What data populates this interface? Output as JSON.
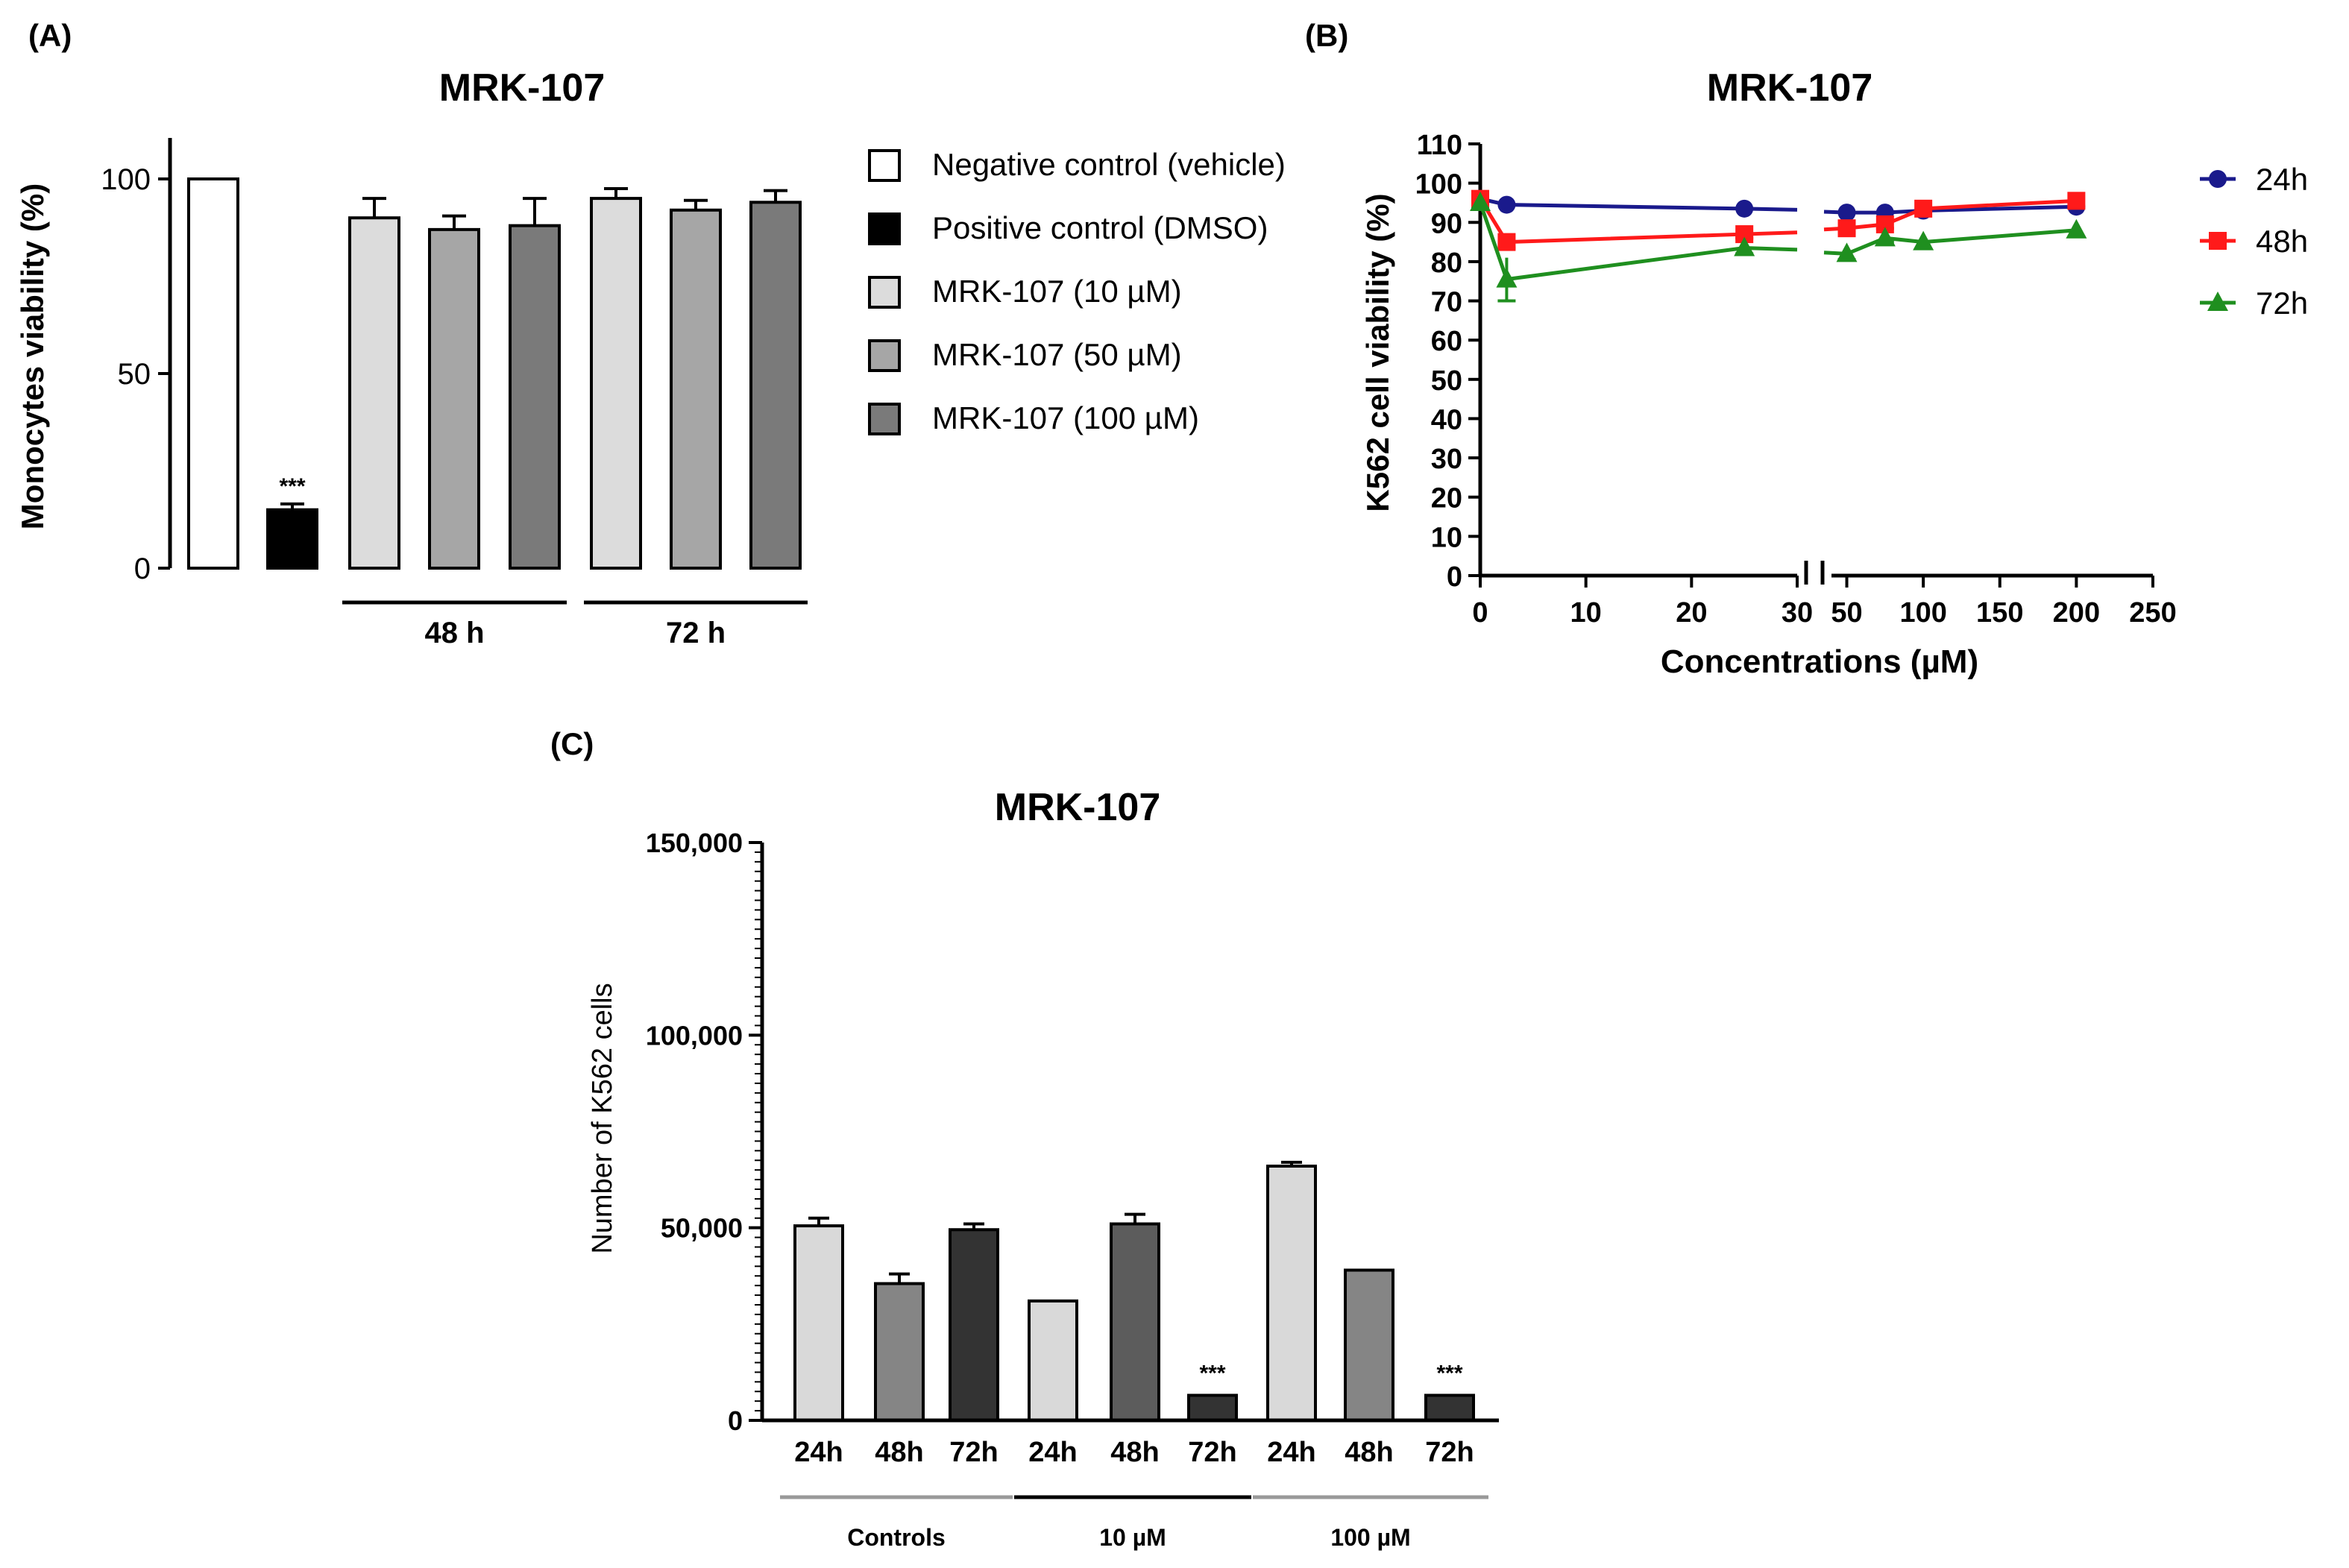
{
  "figure": {
    "panel_a_label": "(A)",
    "panel_b_label": "(B)",
    "panel_c_label": "(C)"
  },
  "chart_data": [
    {
      "id": "A",
      "type": "bar",
      "title": "MRK-107",
      "ylabel": "Monocytes viability (%)",
      "ylim": [
        0,
        110
      ],
      "yticks": [
        "0",
        "50",
        "100"
      ],
      "ytick_values": [
        0,
        50,
        100
      ],
      "categories": [
        "Negative control (vehicle)",
        "Positive control (DMSO)",
        "MRK-107 (10 µM) 48 h",
        "MRK-107 (50 µM) 48 h",
        "MRK-107 (100 µM) 48 h",
        "MRK-107 (10 µM) 72 h",
        "MRK-107 (50 µM) 72 h",
        "MRK-107 (100 µM) 72 h"
      ],
      "values": [
        100,
        15,
        90,
        87,
        88,
        95,
        92,
        94
      ],
      "errors": [
        0,
        1.5,
        5,
        3.5,
        7,
        2.5,
        2.5,
        3
      ],
      "bar_colors": [
        "#ffffff",
        "#000000",
        "#dcdcdc",
        "#a6a6a6",
        "#7a7a7a",
        "#dcdcdc",
        "#a6a6a6",
        "#7a7a7a"
      ],
      "annotations": [
        {
          "bar": 1,
          "text": "***"
        }
      ],
      "groups": [
        {
          "label": "48 h",
          "from": 2,
          "to": 4
        },
        {
          "label": "72 h",
          "from": 5,
          "to": 7
        }
      ],
      "legend": [
        {
          "label": "Negative control (vehicle)",
          "color": "#ffffff"
        },
        {
          "label": "Positive control (DMSO)",
          "color": "#000000"
        },
        {
          "label": "MRK-107 (10 µM)",
          "color": "#dcdcdc"
        },
        {
          "label": "MRK-107 (50 µM)",
          "color": "#a6a6a6"
        },
        {
          "label": "MRK-107 (100 µM)",
          "color": "#7a7a7a"
        }
      ],
      "legend_position": "right"
    },
    {
      "id": "B",
      "type": "line",
      "title": "MRK-107",
      "xlabel": "Concentrations (µM)",
      "ylabel": "K562 cell viability (%)",
      "ylim": [
        0,
        110
      ],
      "yticks": [
        "0",
        "10",
        "20",
        "30",
        "40",
        "50",
        "60",
        "70",
        "80",
        "90",
        "100",
        "110"
      ],
      "ytick_values": [
        0,
        10,
        20,
        30,
        40,
        50,
        60,
        70,
        80,
        90,
        100,
        110
      ],
      "x_segment1": [
        0,
        30
      ],
      "x_segment2": [
        40,
        250
      ],
      "xticks1": [
        "0",
        "10",
        "20",
        "30"
      ],
      "xtick_values1": [
        0,
        10,
        20,
        30
      ],
      "xticks2": [
        "50",
        "100",
        "150",
        "200",
        "250"
      ],
      "xtick_values2": [
        50,
        100,
        150,
        200,
        250
      ],
      "series": [
        {
          "name": "24h",
          "color": "#1a1a8c",
          "marker": "circle",
          "x": [
            0,
            2.5,
            25,
            50,
            75,
            100,
            200
          ],
          "values": [
            96,
            94.5,
            93.5,
            92.5,
            92.5,
            93,
            94
          ],
          "errors": [
            1,
            0.5,
            0.5,
            0.5,
            0.5,
            0.5,
            0.5
          ]
        },
        {
          "name": "48h",
          "color": "#ff1a1a",
          "marker": "square",
          "x": [
            0,
            2.5,
            25,
            50,
            75,
            100,
            200
          ],
          "values": [
            96,
            85,
            87,
            88.5,
            89.5,
            93.5,
            95.5
          ],
          "errors": [
            1,
            1.5,
            1,
            1,
            1,
            0.5,
            0.5
          ]
        },
        {
          "name": "72h",
          "color": "#1f8f1f",
          "marker": "triangle",
          "x": [
            0,
            2.5,
            25,
            50,
            75,
            100,
            200
          ],
          "values": [
            95,
            75.5,
            83.5,
            82,
            86,
            85,
            88
          ],
          "errors": [
            1.5,
            5.5,
            1.5,
            1.5,
            1,
            0.5,
            0.5
          ]
        }
      ],
      "legend_position": "right"
    },
    {
      "id": "C",
      "type": "bar",
      "title": "MRK-107",
      "ylabel": "Number of K562 cells",
      "ylim": [
        0,
        150000
      ],
      "yticks": [
        "0",
        "50,000",
        "100,000",
        "150,000"
      ],
      "ytick_values": [
        0,
        50000,
        100000,
        150000
      ],
      "categories": [
        "24h",
        "48h",
        "72h",
        "24h",
        "48h",
        "72h",
        "24h",
        "48h",
        "72h"
      ],
      "values": [
        50500,
        35500,
        49500,
        31000,
        51000,
        6500,
        66000,
        39000,
        6500
      ],
      "errors": [
        2000,
        2500,
        1500,
        0,
        2500,
        0,
        1000,
        0,
        0
      ],
      "bar_colors": [
        "#d9d9d9",
        "#858585",
        "#333333",
        "#d9d9d9",
        "#5c5c5c",
        "#333333",
        "#d9d9d9",
        "#858585",
        "#333333"
      ],
      "annotations": [
        {
          "bar": 5,
          "text": "***"
        },
        {
          "bar": 8,
          "text": "***"
        }
      ],
      "groups": [
        {
          "label": "Controls",
          "from": 0,
          "to": 2,
          "color": "#999999"
        },
        {
          "label": "10 µM",
          "from": 3,
          "to": 5,
          "color": "#000000"
        },
        {
          "label": "100 µM",
          "from": 6,
          "to": 8,
          "color": "#999999"
        }
      ]
    }
  ]
}
